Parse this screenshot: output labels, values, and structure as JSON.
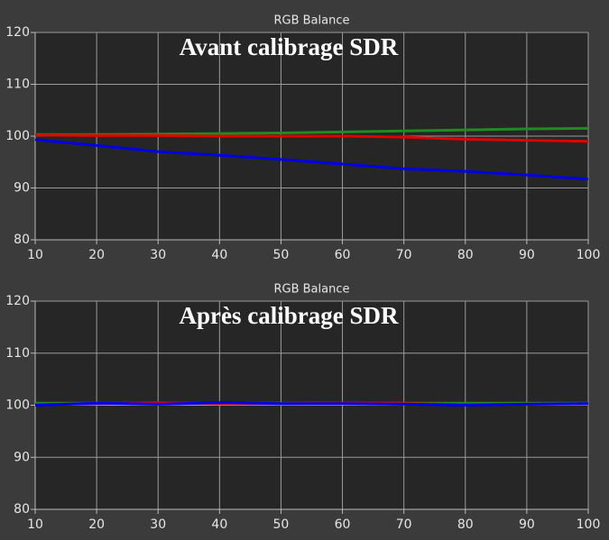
{
  "chart_data": [
    {
      "type": "line",
      "title": "RGB Balance",
      "annotation": "Avant calibrage SDR",
      "x": [
        10,
        20,
        30,
        40,
        50,
        60,
        70,
        80,
        90,
        100
      ],
      "series": [
        {
          "name": "Green",
          "color": "#1e8c1e",
          "values": [
            100.3,
            100.3,
            100.4,
            100.5,
            100.6,
            100.8,
            101.0,
            101.2,
            101.4,
            101.5
          ]
        },
        {
          "name": "Red",
          "color": "#e00000",
          "values": [
            100.2,
            100.1,
            100.1,
            100.0,
            100.0,
            100.0,
            99.8,
            99.4,
            99.2,
            99.0
          ]
        },
        {
          "name": "Blue",
          "color": "#0000e6",
          "values": [
            99.3,
            98.2,
            97.0,
            96.3,
            95.5,
            94.6,
            93.7,
            93.2,
            92.5,
            91.7
          ]
        }
      ],
      "xlim": [
        10,
        100
      ],
      "xticks": [
        10,
        20,
        30,
        40,
        50,
        60,
        70,
        80,
        90,
        100
      ],
      "ylim": [
        80,
        120
      ],
      "yticks": [
        80,
        90,
        100,
        110,
        120
      ],
      "grid": true
    },
    {
      "type": "line",
      "title": "RGB Balance",
      "annotation": "Après calibrage SDR",
      "x": [
        10,
        20,
        30,
        40,
        50,
        60,
        70,
        80,
        90,
        100
      ],
      "series": [
        {
          "name": "Green",
          "color": "#1e8c1e",
          "values": [
            100.4,
            100.4,
            100.3,
            100.4,
            100.4,
            100.4,
            100.4,
            100.4,
            100.4,
            100.4
          ]
        },
        {
          "name": "Red",
          "color": "#e00000",
          "values": [
            100.1,
            100.3,
            100.5,
            100.3,
            100.3,
            100.4,
            100.3,
            100.1,
            100.2,
            100.3
          ]
        },
        {
          "name": "Blue",
          "color": "#0000e6",
          "values": [
            100.0,
            100.4,
            100.2,
            100.5,
            100.3,
            100.3,
            100.2,
            100.0,
            100.2,
            100.3
          ]
        }
      ],
      "xlim": [
        10,
        100
      ],
      "xticks": [
        10,
        20,
        30,
        40,
        50,
        60,
        70,
        80,
        90,
        100
      ],
      "ylim": [
        80,
        120
      ],
      "yticks": [
        80,
        90,
        100,
        110,
        120
      ],
      "grid": true
    }
  ]
}
